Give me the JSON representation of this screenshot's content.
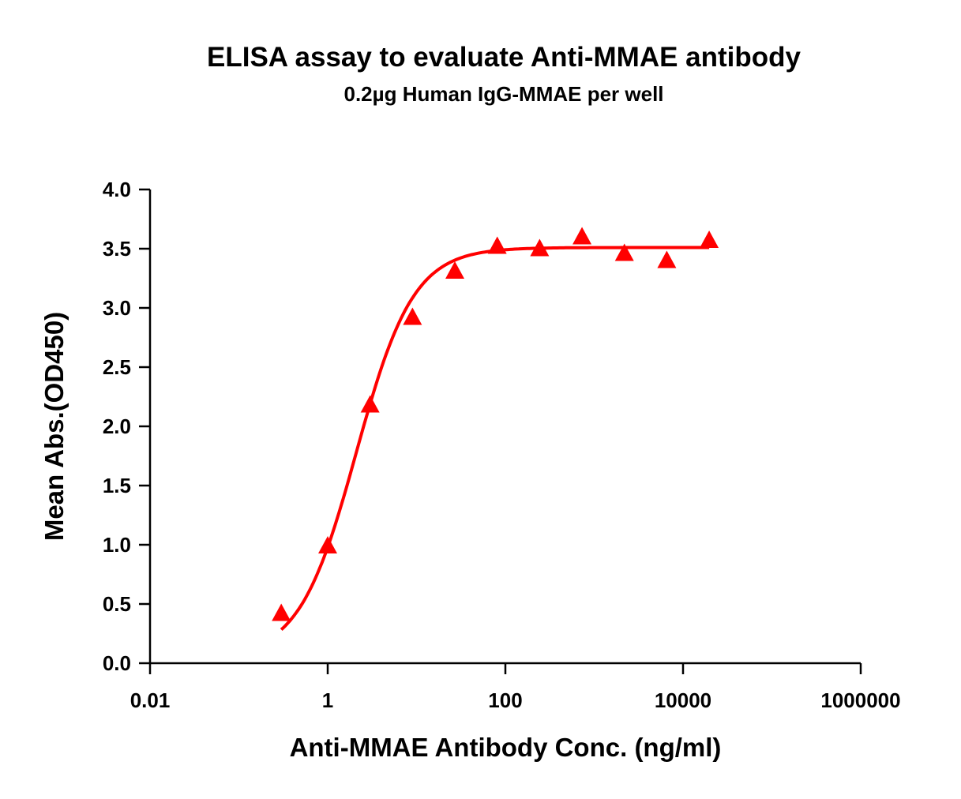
{
  "chart_data": {
    "type": "scatter",
    "title": "ELISA assay to evaluate Anti-MMAE antibody",
    "subtitle": "0.2µg Human IgG-MMAE per well",
    "xlabel": "Anti-MMAE Antibody Conc. (ng/ml)",
    "ylabel": "Mean Abs.(OD450)",
    "xscale": "log",
    "xlim": [
      0.01,
      1000000
    ],
    "ylim": [
      0,
      4.0
    ],
    "xticks": [
      "0.01",
      "1",
      "100",
      "10000",
      "1000000"
    ],
    "xtick_values": [
      0.01,
      1,
      100,
      10000,
      1000000
    ],
    "yticks": [
      "0.0",
      "0.5",
      "1.0",
      "1.5",
      "2.0",
      "2.5",
      "3.0",
      "3.5",
      "4.0"
    ],
    "grid": false,
    "legend": "none",
    "series": [
      {
        "marker": "triangle",
        "color": "#ff0000",
        "fit": "sigmoidal curve",
        "x": [
          0.3,
          1,
          3,
          9,
          27,
          81,
          243,
          729,
          2187,
          6561,
          19683
        ],
        "y": [
          0.41,
          0.98,
          2.17,
          2.91,
          3.3,
          3.51,
          3.49,
          3.59,
          3.45,
          3.39,
          3.56
        ]
      }
    ]
  }
}
